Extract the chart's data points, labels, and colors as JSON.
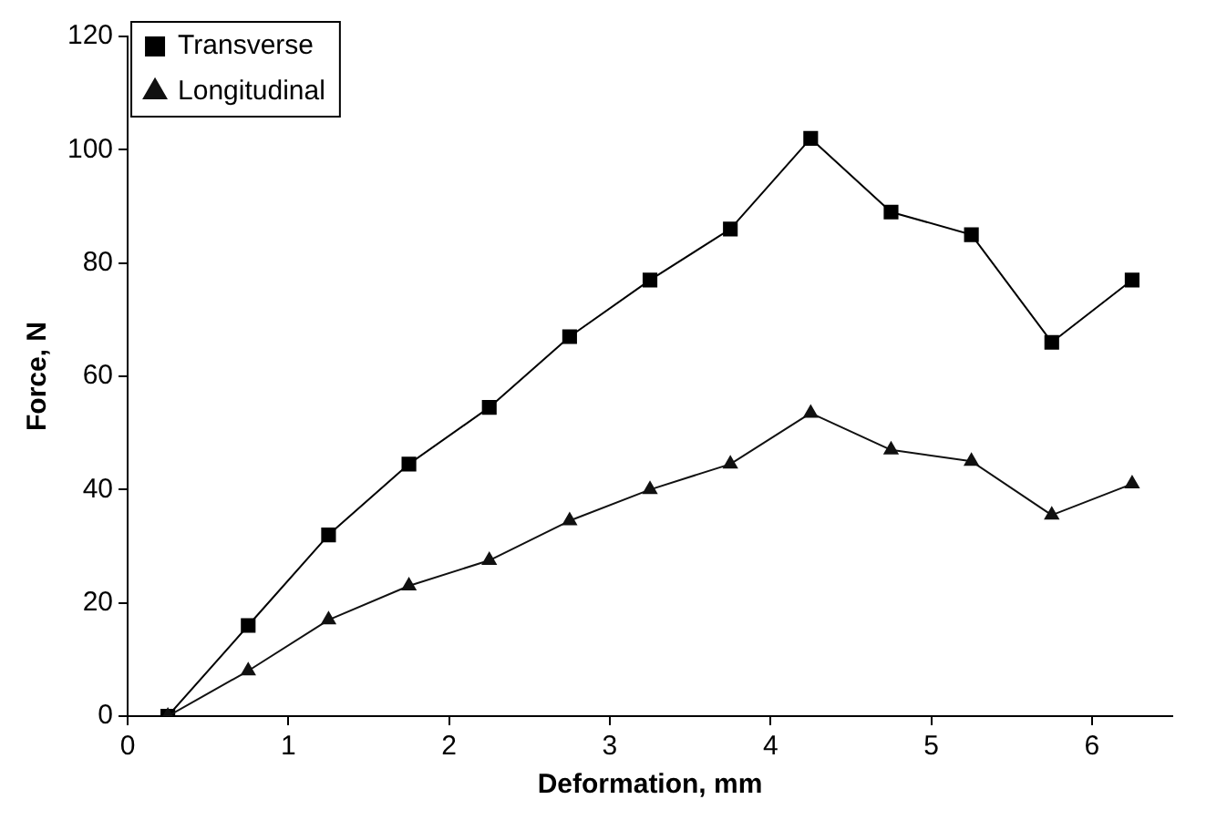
{
  "chart_data": {
    "type": "line",
    "xlabel": "Deformation, mm",
    "ylabel": "Force, N",
    "x": [
      0.25,
      0.75,
      1.25,
      1.75,
      2.25,
      2.75,
      3.25,
      3.75,
      4.25,
      4.75,
      5.25,
      5.75,
      6.25
    ],
    "series": [
      {
        "name": "Transverse",
        "color": "#000000",
        "marker": "square",
        "values": [
          0,
          16,
          32,
          44.5,
          54.5,
          67,
          77,
          86,
          102,
          89,
          85,
          66,
          77
        ]
      },
      {
        "name": "Longitudinal",
        "color": "#111111",
        "marker": "triangle",
        "values": [
          0,
          8,
          17,
          23,
          27.5,
          34.5,
          40,
          44.5,
          53.5,
          47,
          45,
          35.5,
          41
        ]
      }
    ],
    "xlim": [
      0,
      6.5
    ],
    "xticks": [
      0,
      1,
      2,
      3,
      4,
      5,
      6
    ],
    "ylim": [
      0,
      120
    ],
    "yticks": [
      0,
      20,
      40,
      60,
      80,
      100,
      120
    ],
    "grid": false,
    "legend": "top left",
    "line_style": "solid"
  }
}
